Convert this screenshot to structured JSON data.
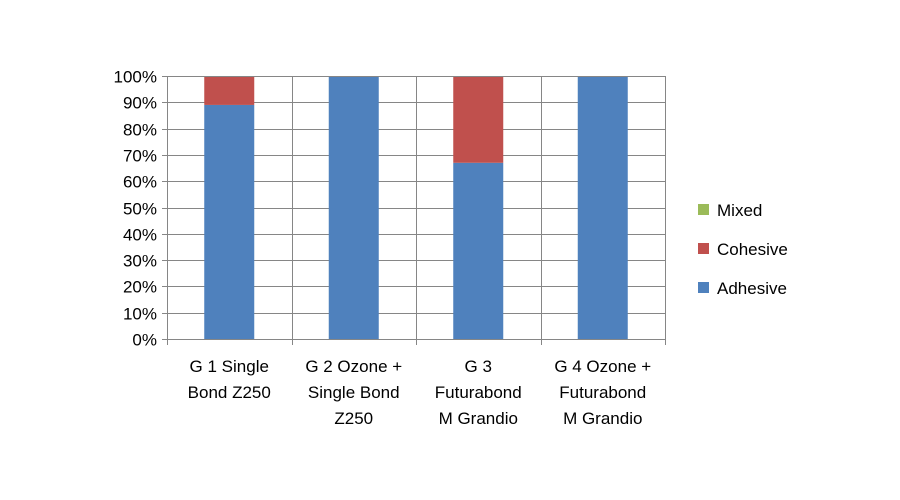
{
  "chart_data": {
    "type": "bar",
    "stacked": true,
    "percent_stacked": true,
    "categories": [
      [
        "G 1 Single",
        "Bond Z250"
      ],
      [
        "G 2 Ozone +",
        "Single Bond",
        "Z250"
      ],
      [
        "G 3",
        "Futurabond",
        "M Grandio"
      ],
      [
        "G 4 Ozone +",
        "Futurabond",
        "M Grandio"
      ]
    ],
    "series": [
      {
        "name": "Adhesive",
        "color": "#4F81BD",
        "values": [
          89,
          100,
          67,
          100
        ]
      },
      {
        "name": "Cohesive",
        "color": "#C0504D",
        "values": [
          11,
          0,
          33,
          0
        ]
      },
      {
        "name": "Mixed",
        "color": "#9BBB59",
        "values": [
          0,
          0,
          0,
          0
        ]
      }
    ],
    "ylim": [
      0,
      100
    ],
    "yticks": [
      "0%",
      "10%",
      "20%",
      "30%",
      "40%",
      "50%",
      "60%",
      "70%",
      "80%",
      "90%",
      "100%"
    ],
    "grid": "horizontal and vertical",
    "legend": {
      "position": "right",
      "order": [
        "Mixed",
        "Cohesive",
        "Adhesive"
      ]
    },
    "title": "",
    "xlabel": "",
    "ylabel": ""
  }
}
